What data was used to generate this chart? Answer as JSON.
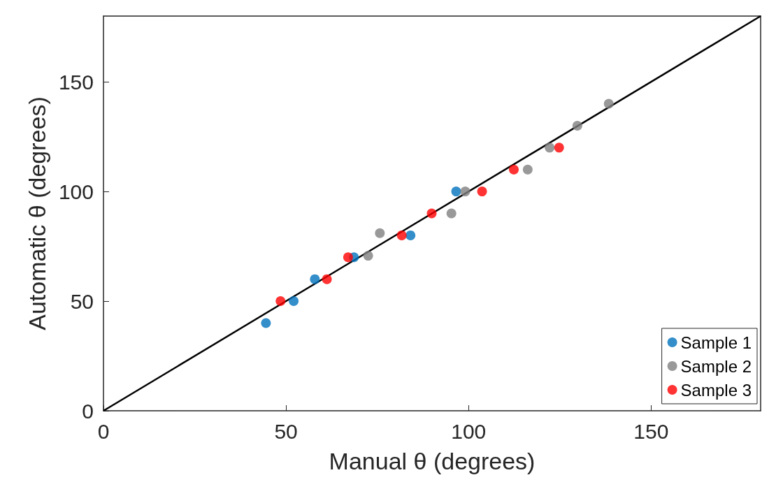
{
  "chart_data": {
    "type": "scatter",
    "xlabel": "Manual θ (degrees)",
    "ylabel": "Automatic θ (degrees)",
    "xlim": [
      0,
      180
    ],
    "ylim": [
      0,
      180
    ],
    "xticks": [
      0,
      50,
      100,
      150
    ],
    "yticks": [
      0,
      50,
      100,
      150
    ],
    "grid": false,
    "legend": "bottom right",
    "marker": "circle",
    "series": [
      {
        "name": "Sample 1",
        "color": "#0072bd",
        "x": [
          44.5,
          52.1,
          57.9,
          68.6,
          84.1,
          96.6
        ],
        "values": [
          40,
          50,
          60,
          70,
          80,
          100
        ]
      },
      {
        "name": "Sample 2",
        "color": "#808080",
        "x": [
          72.5,
          75.7,
          95.3,
          99.1,
          116.2,
          122.2,
          129.8,
          138.4
        ],
        "values": [
          70.7,
          81,
          90,
          100,
          110,
          120,
          130,
          140
        ]
      },
      {
        "name": "Sample 3",
        "color": "#ff0000",
        "x": [
          48.5,
          61.2,
          67,
          81.7,
          89.9,
          103.7,
          112.4,
          124.8
        ],
        "values": [
          50,
          60,
          70,
          80,
          90,
          100,
          110,
          120
        ]
      },
      {
        "type": "line",
        "color": "#000000",
        "line_style": "solid",
        "marker": "none",
        "x": [
          0,
          180
        ],
        "values": [
          0,
          180
        ]
      }
    ]
  }
}
